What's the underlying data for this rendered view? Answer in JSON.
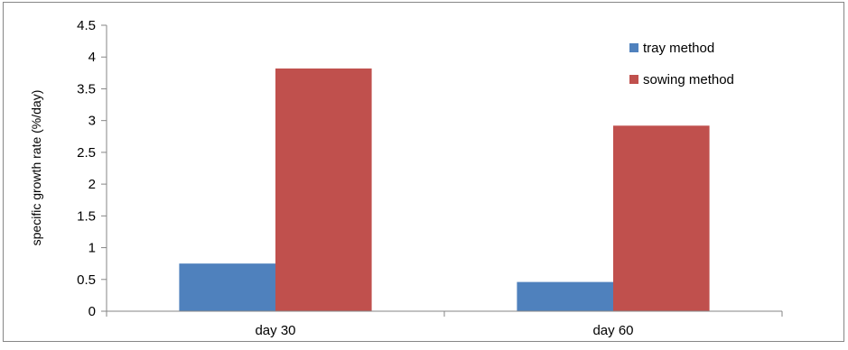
{
  "chart_data": {
    "type": "bar",
    "title": "",
    "xlabel": "",
    "ylabel": "specific growth rate (%/day)",
    "categories": [
      "day 30",
      "day 60"
    ],
    "series": [
      {
        "name": "tray method",
        "values": [
          0.75,
          0.46
        ],
        "color": "#4f81bd"
      },
      {
        "name": "sowing method",
        "values": [
          3.82,
          2.92
        ],
        "color": "#c0504d"
      }
    ],
    "ylim": [
      0,
      4.5
    ],
    "yticks": [
      "0",
      "0.5",
      "1",
      "1.5",
      "2",
      "2.5",
      "3",
      "3.5",
      "4",
      "4.5"
    ],
    "grid": false,
    "legend": "top-right"
  }
}
